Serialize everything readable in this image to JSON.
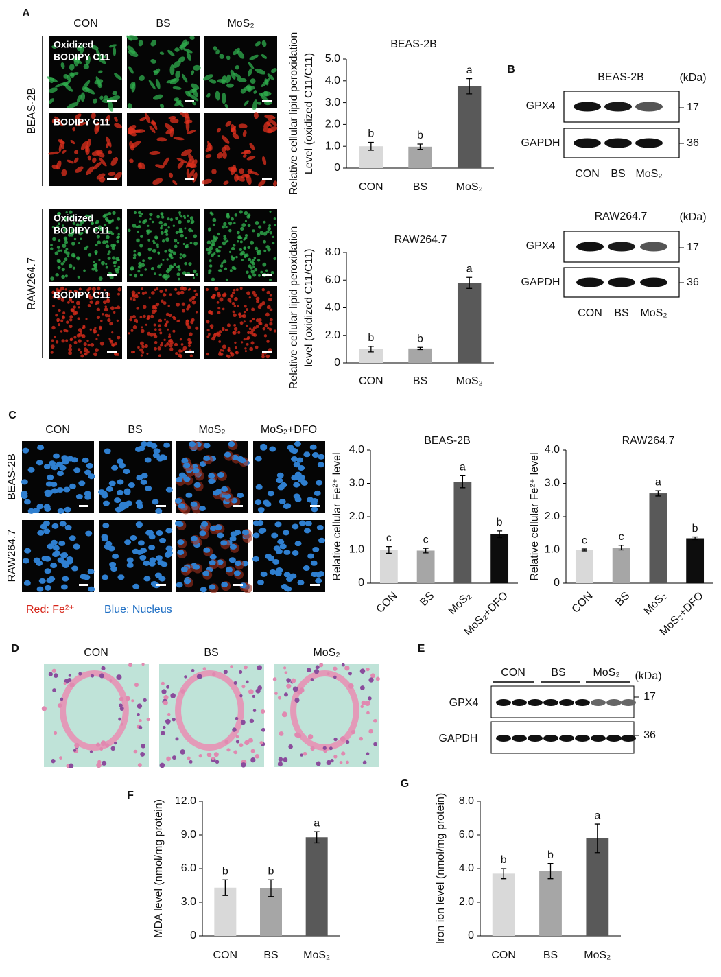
{
  "chart_data": [
    {
      "type": "bar",
      "title": "BEAS-2B",
      "ylabel": [
        "Relative cellular lipid peroxidation",
        "Level (oxidized C11/C11)"
      ],
      "categories": [
        "CON",
        "BS",
        "MoS₂"
      ],
      "values": [
        1.0,
        0.98,
        3.75
      ],
      "errors": [
        0.18,
        0.12,
        0.35
      ],
      "annotations": [
        "b",
        "b",
        "a"
      ],
      "colors": [
        "#d9d9d9",
        "#a6a6a6",
        "#595959"
      ],
      "ylim": [
        0,
        5
      ],
      "yticks": [
        0,
        {
          "value": 1,
          "label": "1.0"
        },
        {
          "value": 2,
          "label": "2.0"
        },
        {
          "value": 3,
          "label": "3.0"
        },
        {
          "value": 4,
          "label": "4.0"
        },
        {
          "value": 5,
          "label": "5.0"
        }
      ],
      "grid": false
    },
    {
      "type": "bar",
      "title": "RAW264.7",
      "ylabel": [
        "Relative cellular lipid peroxidation",
        "level (oxidized C11/C11)"
      ],
      "categories": [
        "CON",
        "BS",
        "MoS₂"
      ],
      "values": [
        1.0,
        1.05,
        5.8
      ],
      "errors": [
        0.2,
        0.08,
        0.4
      ],
      "annotations": [
        "b",
        "b",
        "a"
      ],
      "colors": [
        "#d9d9d9",
        "#a6a6a6",
        "#595959"
      ],
      "ylim": [
        0,
        8
      ],
      "yticks": [
        0,
        {
          "value": 2,
          "label": "2.0"
        },
        {
          "value": 4,
          "label": "4.0"
        },
        {
          "value": 6,
          "label": "6.0"
        },
        {
          "value": 8,
          "label": "8.0"
        }
      ],
      "grid": false
    },
    {
      "type": "bar",
      "title": "BEAS-2B",
      "ylabel": [
        "Relative cellular Fe²⁺ level"
      ],
      "categories": [
        "CON",
        "BS",
        "MoS₂",
        "MoS₂+DFO"
      ],
      "values": [
        1.0,
        0.98,
        3.05,
        1.47
      ],
      "errors": [
        0.1,
        0.07,
        0.18,
        0.1
      ],
      "annotations": [
        "c",
        "c",
        "a",
        "b"
      ],
      "colors": [
        "#d9d9d9",
        "#a6a6a6",
        "#595959",
        "#0d0d0d"
      ],
      "ylim": [
        0,
        4
      ],
      "yticks": [
        0,
        {
          "value": 1,
          "label": "1.0"
        },
        {
          "value": 2,
          "label": "2.0"
        },
        {
          "value": 3,
          "label": "3.0"
        },
        {
          "value": 4,
          "label": "4.0"
        }
      ],
      "grid": false
    },
    {
      "type": "bar",
      "title": "RAW264.7",
      "ylabel": [
        "Relative cellular Fe²⁺ level"
      ],
      "categories": [
        "CON",
        "BS",
        "MoS₂",
        "MoS₂+DFO"
      ],
      "values": [
        1.0,
        1.07,
        2.7,
        1.35
      ],
      "errors": [
        0.03,
        0.07,
        0.08,
        0.04
      ],
      "annotations": [
        "c",
        "c",
        "a",
        "b"
      ],
      "colors": [
        "#d9d9d9",
        "#a6a6a6",
        "#595959",
        "#0d0d0d"
      ],
      "ylim": [
        0,
        4
      ],
      "yticks": [
        0,
        {
          "value": 1,
          "label": "1.0"
        },
        {
          "value": 2,
          "label": "2.0"
        },
        {
          "value": 3,
          "label": "3.0"
        },
        {
          "value": 4,
          "label": "4.0"
        }
      ],
      "grid": false
    },
    {
      "type": "bar",
      "ylabel": [
        "MDA level (nmol/mg protein)"
      ],
      "categories": [
        "CON",
        "BS",
        "MoS₂"
      ],
      "values": [
        4.3,
        4.25,
        8.8
      ],
      "errors": [
        0.7,
        0.75,
        0.5
      ],
      "annotations": [
        "b",
        "b",
        "a"
      ],
      "colors": [
        "#d9d9d9",
        "#a6a6a6",
        "#595959"
      ],
      "ylim": [
        0,
        12
      ],
      "yticks": [
        0,
        {
          "value": 3,
          "label": "3.0"
        },
        {
          "value": 6,
          "label": "6.0"
        },
        {
          "value": 9,
          "label": "9.0"
        },
        {
          "value": 12,
          "label": "12.0"
        }
      ],
      "grid": false
    },
    {
      "type": "bar",
      "ylabel": [
        "Iron ion level (nmol/mg protein)"
      ],
      "categories": [
        "CON",
        "BS",
        "MoS₂"
      ],
      "values": [
        3.7,
        3.85,
        5.8
      ],
      "errors": [
        0.3,
        0.45,
        0.85
      ],
      "annotations": [
        "b",
        "b",
        "a"
      ],
      "colors": [
        "#d9d9d9",
        "#a6a6a6",
        "#595959"
      ],
      "ylim": [
        0,
        8
      ],
      "yticks": [
        0,
        {
          "value": 2,
          "label": "2.0"
        },
        {
          "value": 4,
          "label": "4.0"
        },
        {
          "value": 6,
          "label": "6.0"
        },
        {
          "value": 8,
          "label": "8.0"
        }
      ],
      "grid": false
    }
  ],
  "panel_labels": [
    "A",
    "B",
    "C",
    "D",
    "E",
    "F",
    "G"
  ],
  "panel_a": {
    "columns": [
      "CON",
      "BS",
      "MoS₂"
    ],
    "rows": [
      "BEAS-2B",
      "RAW264.7"
    ],
    "stains": [
      [
        "Oxidized",
        "BODIPY C11"
      ],
      [
        "BODIPY C11"
      ]
    ]
  },
  "panel_b": {
    "blots": [
      {
        "title": "BEAS-2B",
        "lanes": [
          "CON",
          "BS",
          "MoS₂"
        ]
      },
      {
        "title": "RAW264.7",
        "lanes": [
          "CON",
          "BS",
          "MoS₂"
        ]
      }
    ],
    "bands": [
      "GPX4",
      "GAPDH"
    ],
    "unit": "(kDa)",
    "sizes": [
      "17",
      "36"
    ]
  },
  "panel_c": {
    "columns": [
      "CON",
      "BS",
      "MoS₂",
      "MoS₂+DFO"
    ],
    "rows": [
      "BEAS-2B",
      "RAW264.7"
    ],
    "legend": [
      "Red: Fe²⁺",
      "Blue: Nucleus"
    ]
  },
  "panel_d": {
    "columns": [
      "CON",
      "BS",
      "MoS₂"
    ]
  },
  "panel_e": {
    "groups": [
      "CON",
      "BS",
      "MoS₂"
    ],
    "bands": [
      "GPX4",
      "GAPDH"
    ],
    "unit": "(kDa)",
    "sizes": [
      "17",
      "36"
    ]
  }
}
